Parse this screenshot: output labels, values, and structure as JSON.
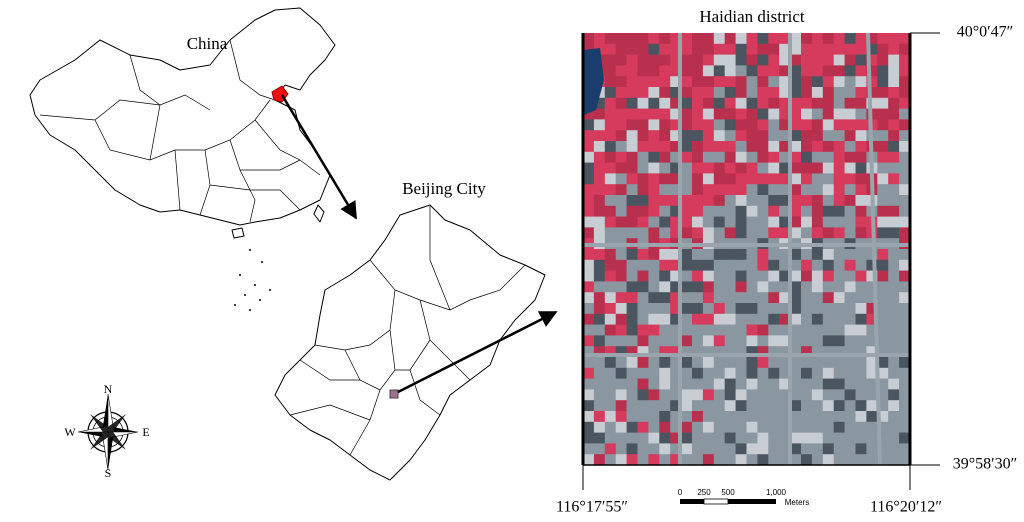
{
  "labels": {
    "china": "China",
    "beijing": "Beijing City",
    "haidian": "Haidian district"
  },
  "coordinates": {
    "north": "40°0′47″",
    "south": "39°58′30″",
    "west": "116°17′55″",
    "east": "116°20′12″"
  },
  "compass": {
    "n": "N",
    "s": "S",
    "e": "E",
    "w": "W"
  },
  "scale_bar": {
    "ticks": [
      "0",
      "250",
      "500",
      "1,000"
    ],
    "unit": "Meters"
  }
}
